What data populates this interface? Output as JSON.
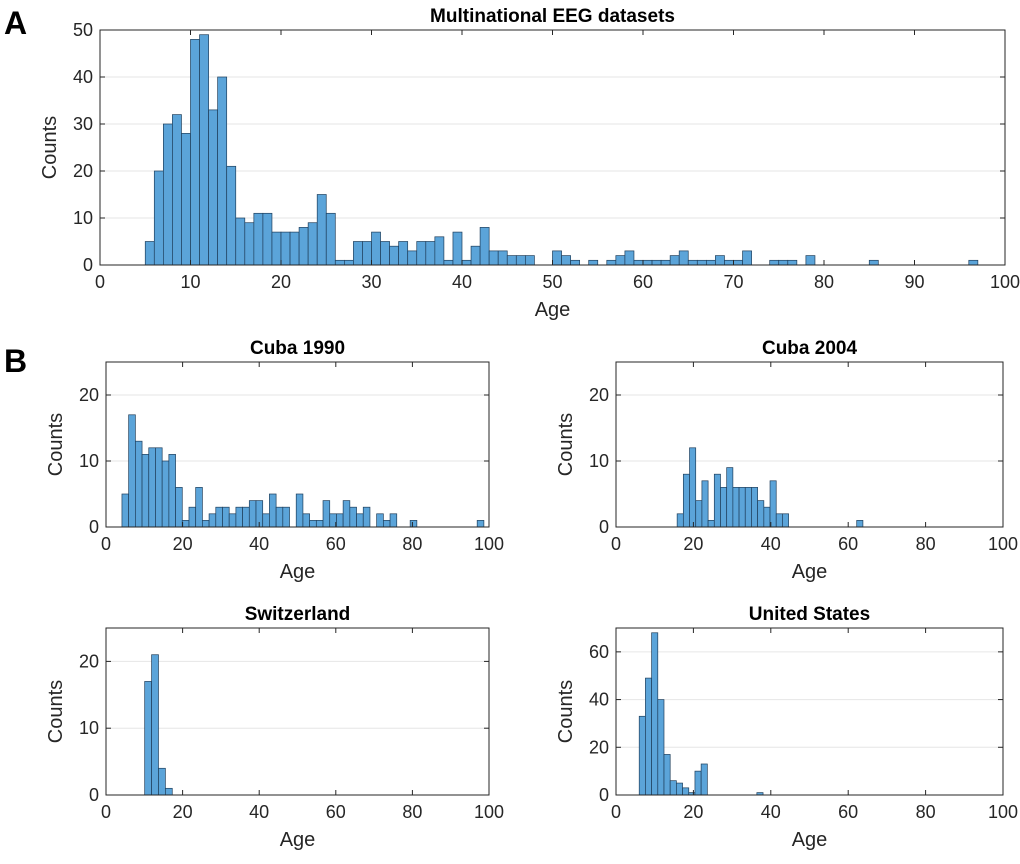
{
  "panel_labels": [
    "A",
    "B"
  ],
  "colors": {
    "bar_fill": "#5ba4d9",
    "bar_edge": "#1f3f5c",
    "grid": "#e6e6e6",
    "axis": "#262626"
  },
  "chart_data": [
    {
      "id": "multinational",
      "type": "bar",
      "title": "Multinational EEG datasets",
      "xlabel": "Age",
      "ylabel": "Counts",
      "xlim": [
        0,
        100
      ],
      "ylim": [
        0,
        50
      ],
      "xticks": [
        0,
        10,
        20,
        30,
        40,
        50,
        60,
        70,
        80,
        90,
        100
      ],
      "yticks": [
        0,
        10,
        20,
        30,
        40,
        50
      ],
      "grid": "horizontal",
      "bin_width": 1.0,
      "x": [
        5.5,
        6.5,
        7.5,
        8.5,
        9.5,
        10.5,
        11.5,
        12.5,
        13.5,
        14.5,
        15.5,
        16.5,
        17.5,
        18.5,
        19.5,
        20.5,
        21.5,
        22.5,
        23.5,
        24.5,
        25.5,
        26.5,
        27.5,
        28.5,
        29.5,
        30.5,
        31.5,
        32.5,
        33.5,
        34.5,
        35.5,
        36.5,
        37.5,
        38.5,
        39.5,
        40.5,
        41.5,
        42.5,
        43.5,
        44.5,
        45.5,
        46.5,
        47.5,
        48.5,
        49.5,
        50.5,
        51.5,
        52.5,
        53.5,
        54.5,
        55.5,
        56.5,
        57.5,
        58.5,
        59.5,
        60.5,
        61.5,
        62.5,
        63.5,
        64.5,
        65.5,
        66.5,
        67.5,
        68.5,
        69.5,
        70.5,
        71.5,
        72.5,
        73.5,
        74.5,
        75.5,
        76.5,
        77.5,
        78.5,
        79.5,
        80.5,
        81.5,
        82.5,
        83.5,
        84.5,
        85.5,
        86.5,
        87.5,
        88.5,
        89.5,
        90.5,
        91.5,
        92.5,
        93.5,
        94.5,
        95.5,
        96.5
      ],
      "values": [
        5,
        20,
        30,
        32,
        28,
        48,
        49,
        33,
        40,
        21,
        10,
        9,
        11,
        11,
        7,
        7,
        7,
        8,
        9,
        15,
        11,
        1,
        1,
        5,
        5,
        7,
        5,
        4,
        5,
        3,
        5,
        5,
        6,
        1,
        7,
        1,
        4,
        8,
        3,
        3,
        2,
        2,
        2,
        0,
        0,
        3,
        2,
        1,
        0,
        1,
        0,
        1,
        2,
        3,
        1,
        1,
        1,
        1,
        2,
        3,
        1,
        1,
        1,
        2,
        1,
        1,
        3,
        0,
        0,
        1,
        1,
        1,
        0,
        2,
        0,
        0,
        0,
        0,
        0,
        0,
        1,
        0,
        0,
        0,
        0,
        0,
        0,
        0,
        0,
        0,
        0,
        1
      ]
    },
    {
      "id": "cuba1990",
      "type": "bar",
      "title": "Cuba 1990",
      "xlabel": "Age",
      "ylabel": "Counts",
      "xlim": [
        0,
        100
      ],
      "ylim": [
        0,
        25
      ],
      "xticks": [
        0,
        20,
        40,
        60,
        80,
        100
      ],
      "yticks": [
        0,
        10,
        20
      ],
      "grid": "horizontal",
      "bin_width": 1.75,
      "x": [
        5.04,
        6.79,
        8.54,
        10.29,
        12.04,
        13.79,
        15.54,
        17.29,
        19.04,
        20.79,
        22.54,
        24.29,
        26.04,
        27.79,
        29.54,
        31.29,
        33.04,
        34.79,
        36.54,
        38.29,
        40.04,
        41.79,
        43.54,
        45.29,
        47.04,
        48.79,
        50.54,
        52.29,
        54.04,
        55.79,
        57.54,
        59.29,
        61.04,
        62.79,
        64.54,
        66.29,
        68.04,
        69.79,
        71.54,
        73.29,
        75.04,
        76.79,
        78.54,
        80.29,
        82.04,
        83.79,
        85.54,
        87.29,
        89.04,
        90.79,
        92.54,
        94.29,
        96.04,
        97.79
      ],
      "values": [
        5,
        17,
        13,
        11,
        12,
        12,
        10,
        11,
        6,
        1,
        3,
        6,
        1,
        2,
        3,
        3,
        2,
        3,
        3,
        4,
        4,
        2,
        5,
        3,
        3,
        0,
        5,
        2,
        1,
        1,
        4,
        2,
        2,
        4,
        3,
        2,
        3,
        0,
        2,
        1,
        2,
        0,
        0,
        1,
        0,
        0,
        0,
        0,
        0,
        0,
        0,
        0,
        0,
        1
      ]
    },
    {
      "id": "cuba2004",
      "type": "bar",
      "title": "Cuba 2004",
      "xlabel": "Age",
      "ylabel": "Counts",
      "xlim": [
        0,
        100
      ],
      "ylim": [
        0,
        25
      ],
      "xticks": [
        0,
        20,
        40,
        60,
        80,
        100
      ],
      "yticks": [
        0,
        10,
        20
      ],
      "grid": "horizontal",
      "bin_width": 1.6,
      "x": [
        16.6,
        18.2,
        19.8,
        21.4,
        23.0,
        24.6,
        26.2,
        27.8,
        29.4,
        31.0,
        32.6,
        34.2,
        35.8,
        37.4,
        39.0,
        40.6,
        42.2,
        43.8,
        45.4,
        47.0,
        48.6,
        50.2,
        51.8,
        53.4,
        55.0,
        56.6,
        58.2,
        59.8,
        61.4,
        63.0
      ],
      "values": [
        2,
        8,
        12,
        4,
        7,
        1,
        8,
        6,
        9,
        6,
        6,
        6,
        6,
        4,
        3,
        7,
        2,
        2,
        0,
        0,
        0,
        0,
        0,
        0,
        0,
        0,
        0,
        0,
        0,
        1
      ]
    },
    {
      "id": "switzerland",
      "type": "bar",
      "title": "Switzerland",
      "xlabel": "Age",
      "ylabel": "Counts",
      "xlim": [
        0,
        100
      ],
      "ylim": [
        0,
        25
      ],
      "xticks": [
        0,
        20,
        40,
        60,
        80,
        100
      ],
      "yticks": [
        0,
        10,
        20
      ],
      "grid": "horizontal",
      "bin_width": 1.8,
      "x": [
        11.0,
        12.8,
        14.6,
        16.4
      ],
      "values": [
        17,
        21,
        4,
        1
      ]
    },
    {
      "id": "united_states",
      "type": "bar",
      "title": "United States",
      "xlabel": "Age",
      "ylabel": "Counts",
      "xlim": [
        0,
        100
      ],
      "ylim": [
        0,
        70
      ],
      "xticks": [
        0,
        20,
        40,
        60,
        80,
        100
      ],
      "yticks": [
        0,
        20,
        40,
        60
      ],
      "grid": "horizontal",
      "bin_width": 1.6,
      "x": [
        6.8,
        8.4,
        10.0,
        11.6,
        13.2,
        14.8,
        16.4,
        18.0,
        19.6,
        21.2,
        22.8,
        24.4,
        26.0,
        27.6,
        29.2,
        30.8,
        32.4,
        34.0,
        35.6,
        37.2
      ],
      "values": [
        33,
        49,
        68,
        40,
        17,
        6,
        5,
        3,
        1,
        10,
        13,
        0,
        0,
        0,
        0,
        0,
        0,
        0,
        0,
        1
      ]
    }
  ]
}
